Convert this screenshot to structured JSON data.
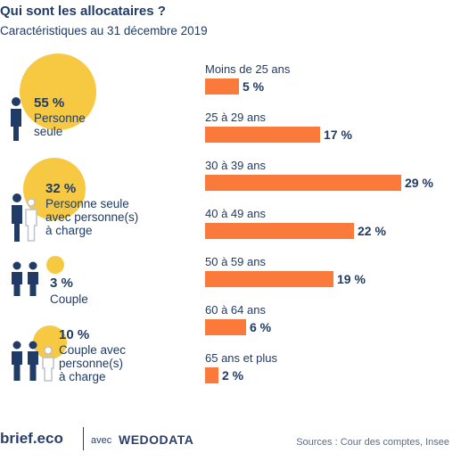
{
  "title": "Qui sont les allocataires ?",
  "subtitle": "Caractéristiques au 31 décembre 2019",
  "colors": {
    "navy": "#1f3b66",
    "yellow": "#f7c842",
    "orange": "#f97a3a",
    "grey": "#b9c2cf"
  },
  "households": [
    {
      "pct": "55 %",
      "label": "Personne\nseule",
      "value": 55,
      "icon": "single-person-icon"
    },
    {
      "pct": "32 %",
      "label": "Personne seule\navec personne(s)\nà charge",
      "value": 32,
      "icon": "person-with-dependent-icon"
    },
    {
      "pct": "3 %",
      "label": "Couple",
      "value": 3,
      "icon": "couple-icon"
    },
    {
      "pct": "10 %",
      "label": "Couple avec\npersonne(s)\nà charge",
      "value": 10,
      "icon": "couple-with-dependent-icon"
    }
  ],
  "chart_data": {
    "type": "bar",
    "orientation": "horizontal",
    "categories": [
      "Moins de 25 ans",
      "25 à 29 ans",
      "30 à 39 ans",
      "40 à 49 ans",
      "50 à 59 ans",
      "60 à 64 ans",
      "65 ans et plus"
    ],
    "values": [
      5,
      17,
      29,
      22,
      19,
      6,
      2
    ],
    "value_labels": [
      "5 %",
      "17 %",
      "29 %",
      "22 %",
      "19 %",
      "6 %",
      "2 %"
    ],
    "unit": "%",
    "xlim": [
      0,
      29
    ]
  },
  "footer": {
    "brand": "brief.eco",
    "avec": "avec",
    "partner": "WEDODATA",
    "sources": "Sources : Cour des comptes, Insee"
  }
}
